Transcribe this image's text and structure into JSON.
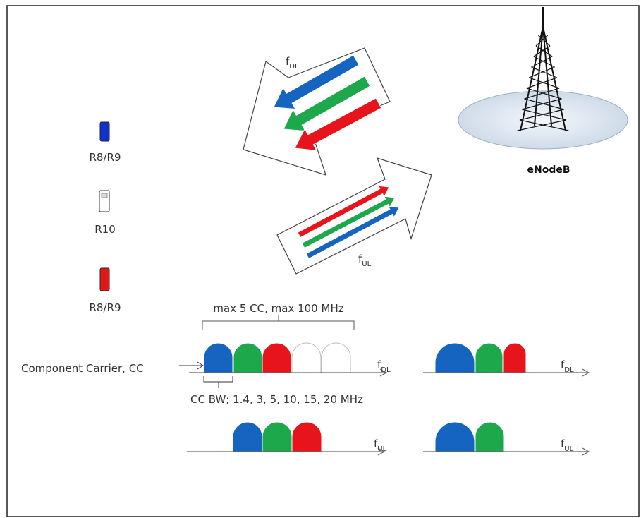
{
  "devices": [
    {
      "label": "R8/R9"
    },
    {
      "label": "R10"
    },
    {
      "label": "R8/R9"
    }
  ],
  "base_station": {
    "label": "eNodeB"
  },
  "links": {
    "downlink": {
      "symbol": "f",
      "subscript": "DL"
    },
    "uplink": {
      "symbol": "f",
      "subscript": "UL"
    }
  },
  "carrier_diagram": {
    "span_label": "max 5 CC, max 100 MHz",
    "carrier_label": "Component Carrier, CC",
    "bandwidth_label": "CC BW; 1.4, 3, 5, 10, 15, 20 MHz",
    "axes": [
      {
        "symbol": "f",
        "subscript": "DL"
      },
      {
        "symbol": "f",
        "subscript": "DL"
      },
      {
        "symbol": "f",
        "subscript": "UL"
      },
      {
        "symbol": "f",
        "subscript": "UL"
      }
    ]
  }
}
